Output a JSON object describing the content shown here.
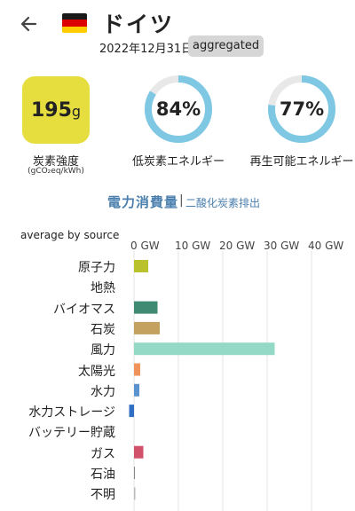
{
  "header": {
    "zone_name": "ドイツ",
    "date": "2022年12月31日",
    "badge": "aggregated",
    "flag_colors": [
      "#1a1a1a",
      "#dd0000",
      "#ffcc00"
    ]
  },
  "summary": {
    "carbon_intensity": {
      "value": "195",
      "unit": "g",
      "label": "炭素強度",
      "sublabel": "(gCO₂eq/kWh)",
      "color": "#e6de3f"
    },
    "low_carbon": {
      "percent": 84,
      "display": "84%",
      "label": "低炭素エネルギー"
    },
    "renewable": {
      "percent": 77,
      "display": "77%",
      "label": "再生可能エネルギー"
    },
    "gauge_color": "#7ec8e3",
    "gauge_track": "#e8e8e8"
  },
  "tabs": {
    "active": "電力消費量",
    "separator": "|",
    "inactive": "二酸化炭素排出"
  },
  "chart": {
    "section_label": "average by source",
    "tick_labels": [
      "0 GW",
      "10 GW",
      "20 GW",
      "30 GW",
      "40 GW"
    ]
  },
  "chart_data": {
    "type": "bar",
    "orientation": "horizontal",
    "xlim": [
      -1,
      45
    ],
    "xticks": [
      0,
      10,
      20,
      30,
      40
    ],
    "unit": "GW",
    "categories": [
      "原子力",
      "地熱",
      "バイオマス",
      "石炭",
      "風力",
      "太陽光",
      "水力",
      "水力ストレージ",
      "バッテリー貯蔵",
      "ガス",
      "石油",
      "不明"
    ],
    "values": [
      3.2,
      0,
      5.3,
      5.8,
      31.7,
      1.4,
      1.2,
      -1.1,
      0,
      2.1,
      0.1,
      0.3
    ],
    "colors": [
      "#b9c22d",
      "#dddddd",
      "#3f8a72",
      "#c4a15f",
      "#93d9c6",
      "#f0935b",
      "#5b93d0",
      "#2f6fc4",
      "#999999",
      "#d1506a",
      "#888888",
      "#bbbbbb"
    ]
  }
}
